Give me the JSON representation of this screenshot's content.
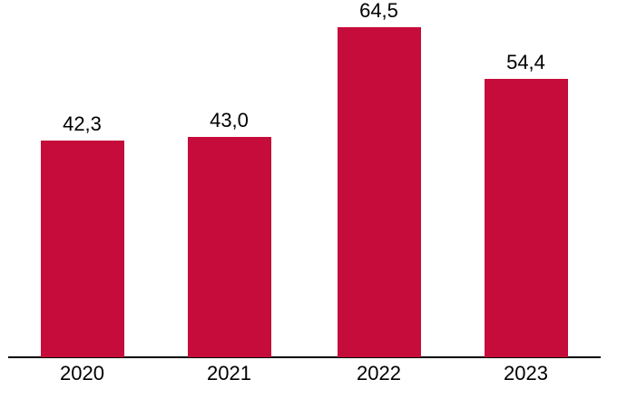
{
  "chart_data": {
    "type": "bar",
    "title": "",
    "xlabel": "",
    "ylabel": "",
    "categories": [
      "2020",
      "2021",
      "2022",
      "2023"
    ],
    "values": [
      42.3,
      43.0,
      64.5,
      54.4
    ],
    "value_labels": [
      "42,3",
      "43,0",
      "64,5",
      "54,4"
    ],
    "decimal_separator": ",",
    "bar_color": "#C60C3A",
    "axis_color": "#000000",
    "text_color": "#000000",
    "background_color": "#FFFFFF",
    "ylim": [
      0,
      70
    ],
    "grid": false,
    "legend": "none",
    "value_labels_position": "above-bars",
    "x_axis_line": true,
    "y_axis_line": false
  }
}
